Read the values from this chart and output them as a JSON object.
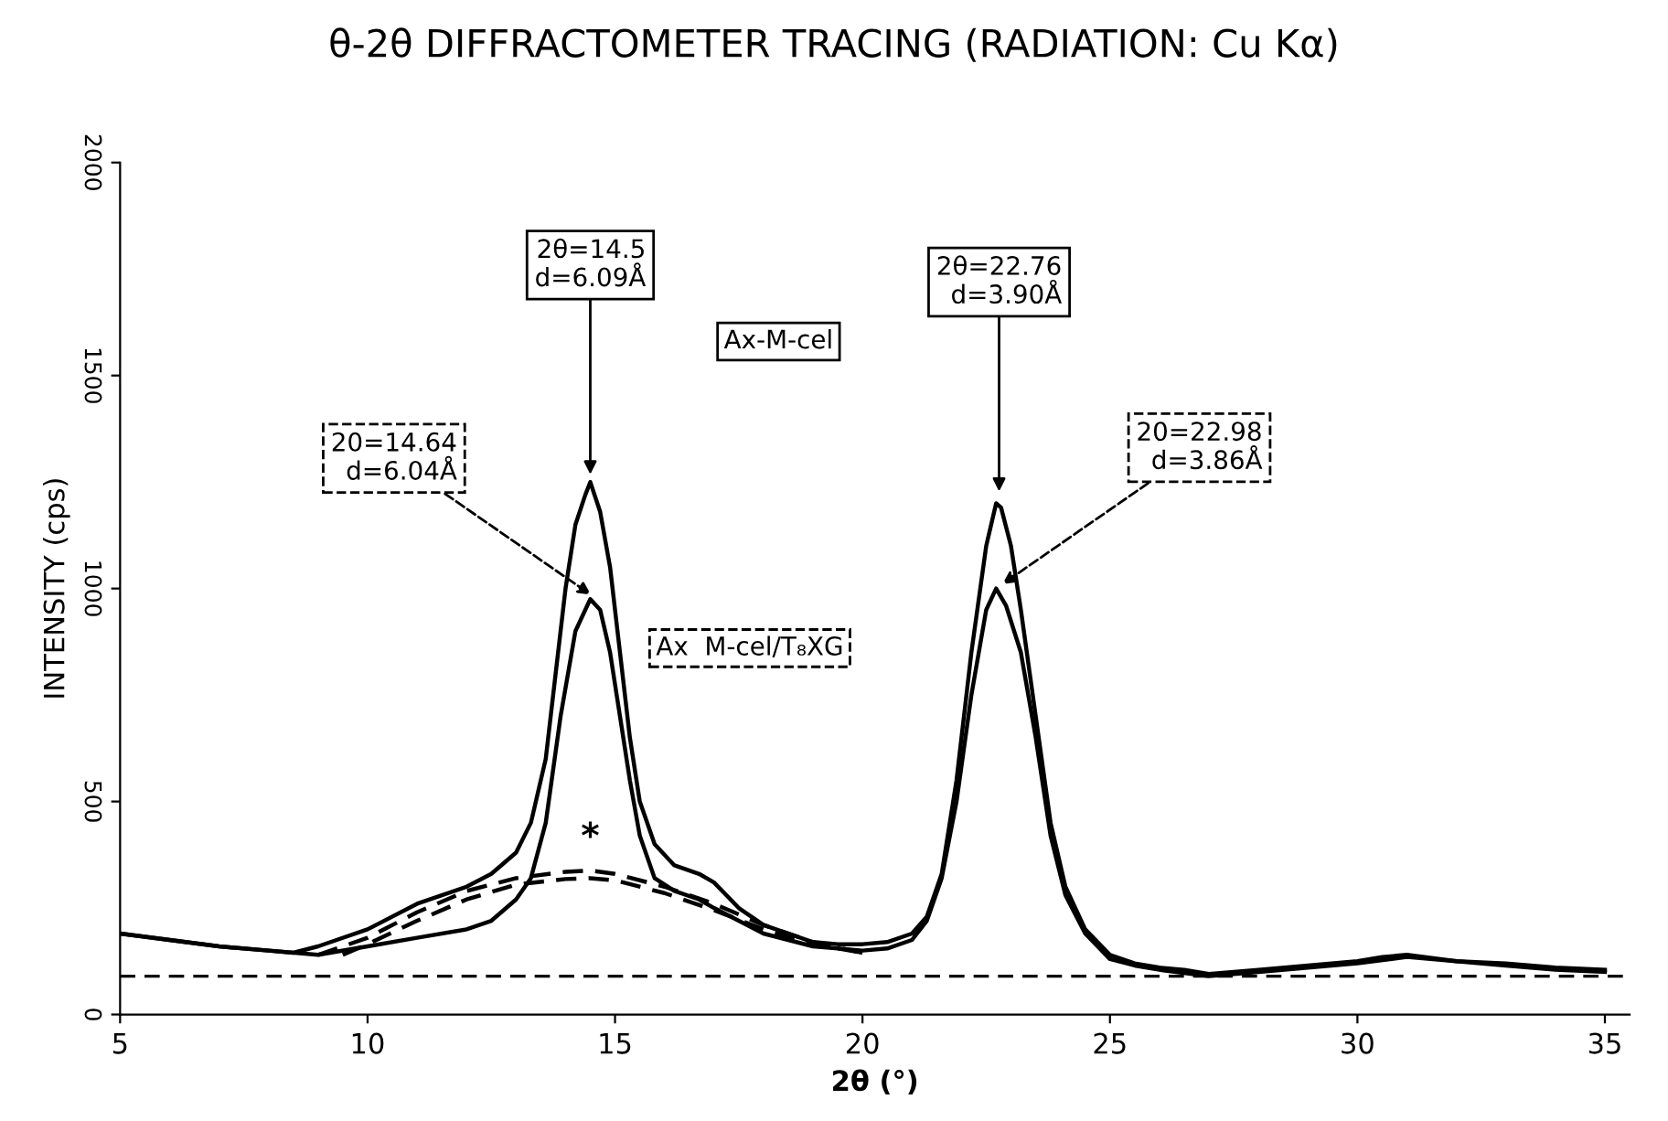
{
  "chart_data": {
    "type": "line",
    "title": "θ-2θ DIFFRACTOMETER TRACING (RADIATION: Cu Kα)",
    "xlabel": "2θ (°)",
    "ylabel": "INTENSITY (cps)",
    "xlim": [
      5,
      35.5
    ],
    "ylim": [
      0,
      2000
    ],
    "xticks": [
      5,
      10,
      15,
      20,
      25,
      30,
      35
    ],
    "yticks": [
      0,
      500,
      1000,
      1500,
      2000
    ],
    "grid": false,
    "legend": false,
    "marker": "none",
    "series": [
      {
        "name": "Ax-M-cel",
        "color": "#000000",
        "line_style": "solid",
        "x": [
          5,
          6,
          7,
          8,
          8.5,
          9,
          10,
          11,
          11.5,
          12,
          12.5,
          13,
          13.3,
          13.6,
          13.8,
          14,
          14.2,
          14.4,
          14.5,
          14.7,
          14.9,
          15.1,
          15.3,
          15.5,
          15.8,
          16.2,
          16.7,
          17,
          17.5,
          18,
          18.5,
          19,
          19.5,
          20,
          20.5,
          21,
          21.3,
          21.6,
          21.9,
          22.2,
          22.5,
          22.7,
          22.8,
          23,
          23.2,
          23.5,
          23.8,
          24.1,
          24.5,
          25,
          25.5,
          26,
          26.5,
          27,
          27.5,
          28,
          29,
          30,
          30.5,
          31,
          32,
          33,
          34,
          35
        ],
        "values": [
          190,
          175,
          160,
          150,
          145,
          160,
          200,
          260,
          280,
          300,
          330,
          380,
          450,
          600,
          800,
          1000,
          1150,
          1220,
          1250,
          1180,
          1050,
          850,
          650,
          500,
          400,
          350,
          330,
          310,
          250,
          210,
          190,
          170,
          165,
          165,
          170,
          190,
          230,
          330,
          550,
          850,
          1100,
          1200,
          1190,
          1100,
          950,
          700,
          450,
          300,
          200,
          140,
          120,
          110,
          105,
          95,
          100,
          105,
          115,
          125,
          135,
          140,
          125,
          120,
          110,
          105
        ]
      },
      {
        "name": "Ax  M-cel/T₈XG",
        "color": "#000000",
        "line_style": "solid",
        "x": [
          5,
          6,
          7,
          8,
          9,
          10,
          11,
          12,
          12.5,
          13,
          13.3,
          13.6,
          13.9,
          14.2,
          14.5,
          14.7,
          14.9,
          15.1,
          15.3,
          15.5,
          15.8,
          16.2,
          16.7,
          17,
          17.5,
          18,
          19,
          20,
          20.5,
          21,
          21.3,
          21.6,
          21.9,
          22.2,
          22.5,
          22.7,
          22.9,
          23.2,
          23.5,
          23.8,
          24.1,
          24.5,
          25,
          25.5,
          26,
          27,
          28,
          29,
          30,
          31,
          32,
          33,
          34,
          35
        ],
        "values": [
          190,
          175,
          160,
          150,
          140,
          160,
          180,
          200,
          220,
          270,
          320,
          450,
          700,
          900,
          975,
          950,
          850,
          700,
          550,
          420,
          320,
          290,
          270,
          250,
          220,
          190,
          160,
          150,
          155,
          175,
          220,
          320,
          500,
          750,
          950,
          1000,
          960,
          850,
          650,
          420,
          280,
          190,
          130,
          115,
          105,
          90,
          100,
          110,
          120,
          135,
          125,
          115,
          105,
          100
        ]
      },
      {
        "color": "#000000",
        "line_style": "dashed",
        "x": [
          9,
          10,
          11,
          12,
          13,
          14,
          14.5,
          15,
          16,
          17,
          18,
          19,
          20
        ],
        "values": [
          140,
          180,
          240,
          290,
          320,
          335,
          338,
          330,
          300,
          260,
          210,
          170,
          145
        ]
      },
      {
        "color": "#000000",
        "line_style": "dashed",
        "x": [
          9.5,
          10,
          11,
          12,
          13,
          14,
          14.5,
          15,
          16,
          17,
          18,
          19,
          20
        ],
        "values": [
          140,
          165,
          220,
          270,
          305,
          318,
          320,
          315,
          285,
          245,
          200,
          165,
          145
        ]
      }
    ],
    "ref_lines": [
      {
        "axis": "y",
        "value": 90,
        "line_style": "dashed",
        "color": "#000000"
      }
    ],
    "annotations": [
      {
        "text": "2θ=14.5\nd=6.09Å",
        "x": 14.5,
        "y": 1250
      },
      {
        "text": "2θ=22.76\nd=3.90Å",
        "x": 22.76,
        "y": 1210
      },
      {
        "text": "20=14.64\nd=6.04Å",
        "x": 14.64,
        "y": 975
      },
      {
        "text": "20=22.98\nd=3.86Å",
        "x": 22.7,
        "y": 1000
      },
      {
        "text": "*",
        "x": 14.5,
        "y": 338
      }
    ]
  }
}
